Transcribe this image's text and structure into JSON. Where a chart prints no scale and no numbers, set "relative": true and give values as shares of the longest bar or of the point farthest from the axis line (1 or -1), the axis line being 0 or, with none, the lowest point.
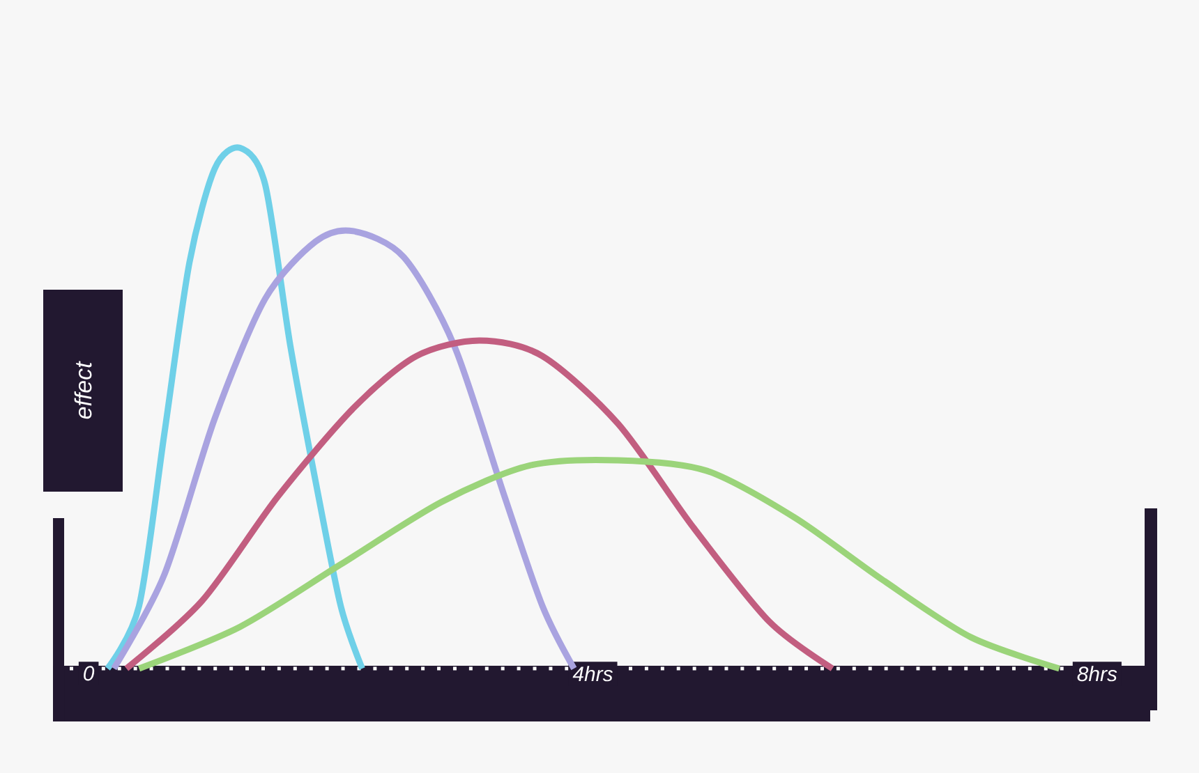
{
  "chart_data": {
    "type": "line",
    "relative": true,
    "ylabel": "effect",
    "xlim": [
      -0.15,
      8.2
    ],
    "xticks": [
      0,
      {
        "value": 4,
        "label": "4hrs"
      },
      {
        "value": 8,
        "label": "8hrs"
      }
    ],
    "series": [
      {
        "color": "#6fd0e8",
        "x": [
          0.15,
          0.4,
          0.6,
          0.8,
          1.0,
          1.2,
          1.4,
          1.6,
          1.8,
          2.0,
          2.17
        ],
        "values": [
          0,
          0.12,
          0.45,
          0.78,
          0.96,
          1.0,
          0.93,
          0.62,
          0.36,
          0.12,
          0
        ]
      },
      {
        "color": "#a9a3e0",
        "x": [
          0.2,
          0.6,
          1.0,
          1.4,
          1.8,
          2.1,
          2.5,
          2.9,
          3.3,
          3.6,
          3.85
        ],
        "values": [
          0,
          0.18,
          0.48,
          0.71,
          0.82,
          0.84,
          0.79,
          0.62,
          0.33,
          0.12,
          0
        ]
      },
      {
        "color": "#c25e80",
        "x": [
          0.3,
          0.9,
          1.5,
          2.1,
          2.6,
          3.1,
          3.6,
          4.2,
          4.8,
          5.4,
          5.9
        ],
        "values": [
          0,
          0.13,
          0.33,
          0.5,
          0.6,
          0.63,
          0.6,
          0.47,
          0.27,
          0.09,
          0
        ]
      },
      {
        "color": "#9bd47a",
        "x": [
          0.4,
          1.2,
          2.0,
          2.8,
          3.5,
          4.2,
          4.9,
          5.6,
          6.3,
          7.0,
          7.7
        ],
        "values": [
          0,
          0.08,
          0.2,
          0.32,
          0.39,
          0.4,
          0.38,
          0.29,
          0.17,
          0.06,
          0
        ]
      }
    ]
  }
}
